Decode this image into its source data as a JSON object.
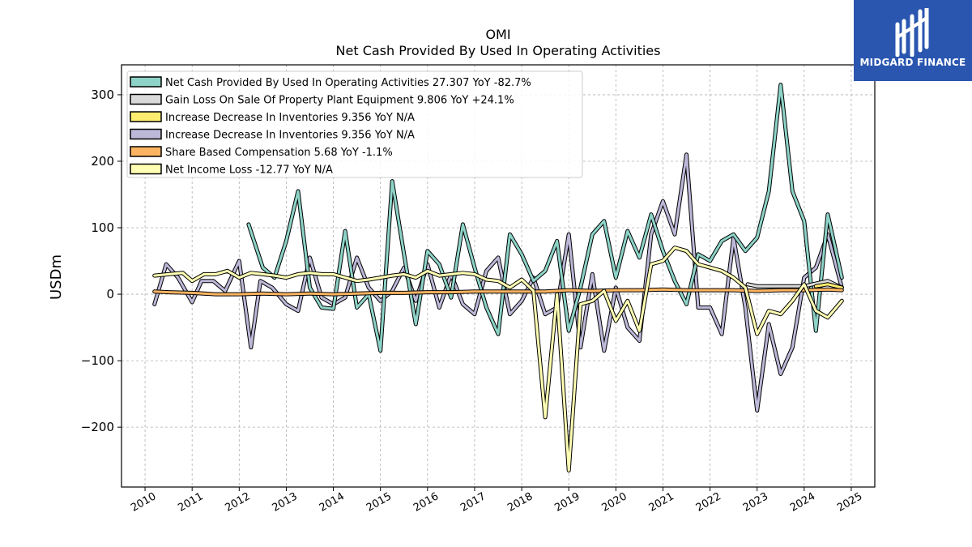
{
  "brand": {
    "name": "MIDGARD FINANCE",
    "bg_color": "#2a56b0"
  },
  "chart_data": {
    "type": "line",
    "title": "OMI",
    "subtitle": "Net Cash Provided By Used In Operating Activities",
    "xlabel": "",
    "ylabel": "USDm",
    "xlim": [
      2009.5,
      2025.5
    ],
    "ylim": [
      -290,
      345
    ],
    "yticks": [
      300,
      200,
      100,
      0,
      -100,
      -200
    ],
    "ytick_labels": [
      "300",
      "200",
      "100",
      "0",
      "−100",
      "−200"
    ],
    "xticks": [
      2010,
      2011,
      2012,
      2013,
      2014,
      2015,
      2016,
      2017,
      2018,
      2019,
      2020,
      2021,
      2022,
      2023,
      2024,
      2025
    ],
    "xtick_labels": [
      "2010",
      "2011",
      "2012",
      "2013",
      "2014",
      "2015",
      "2016",
      "2017",
      "2018",
      "2019",
      "2020",
      "2021",
      "2022",
      "2023",
      "2024",
      "2025"
    ],
    "grid": true,
    "legend_position": "top-left",
    "series": [
      {
        "name": "Increase Decrease In Inventories",
        "label": "Increase Decrease In Inventories  9.356 YoY N/A",
        "color": "#bcb8d8",
        "x": [
          2010.2,
          2010.45,
          2010.7,
          2011.0,
          2011.2,
          2011.45,
          2011.7,
          2012.0,
          2012.25,
          2012.45,
          2012.7,
          2013.0,
          2013.25,
          2013.5,
          2013.75,
          2014.0,
          2014.25,
          2014.5,
          2014.75,
          2015.0,
          2015.25,
          2015.5,
          2015.75,
          2016.0,
          2016.25,
          2016.5,
          2016.75,
          2017.0,
          2017.25,
          2017.5,
          2017.75,
          2018.0,
          2018.25,
          2018.5,
          2018.75,
          2019.0,
          2019.25,
          2019.5,
          2019.75,
          2020.0,
          2020.25,
          2020.5,
          2020.75,
          2021.0,
          2021.25,
          2021.5,
          2021.75,
          2022.0,
          2022.25,
          2022.5,
          2022.75,
          2023.0,
          2023.25,
          2023.5,
          2023.75,
          2024.0,
          2024.25,
          2024.5,
          2024.8
        ],
        "values": [
          -15,
          45,
          25,
          -12,
          20,
          20,
          5,
          50,
          -80,
          20,
          10,
          -15,
          -25,
          55,
          -5,
          -15,
          -5,
          55,
          10,
          -10,
          5,
          40,
          -10,
          45,
          -20,
          30,
          -15,
          -30,
          35,
          55,
          -30,
          -10,
          25,
          -30,
          -20,
          90,
          -80,
          30,
          -85,
          10,
          -50,
          -70,
          90,
          140,
          90,
          210,
          -20,
          -20,
          -60,
          85,
          -20,
          -175,
          -45,
          -120,
          -80,
          25,
          40,
          90,
          10
        ]
      },
      {
        "name": "Net Cash Provided By Used In Operating Activities",
        "label": "Net Cash Provided By Used In Operating Activities  27.307 YoY -82.7%",
        "color": "#8dd3c7",
        "x": [
          2012.2,
          2012.5,
          2012.75,
          2013.0,
          2013.25,
          2013.5,
          2013.75,
          2014.0,
          2014.25,
          2014.5,
          2014.75,
          2015.0,
          2015.25,
          2015.5,
          2015.75,
          2016.0,
          2016.25,
          2016.5,
          2016.75,
          2017.0,
          2017.25,
          2017.5,
          2017.75,
          2018.0,
          2018.25,
          2018.5,
          2018.75,
          2019.0,
          2019.25,
          2019.5,
          2019.75,
          2020.0,
          2020.25,
          2020.5,
          2020.75,
          2021.0,
          2021.25,
          2021.5,
          2021.75,
          2022.0,
          2022.25,
          2022.5,
          2022.75,
          2023.0,
          2023.25,
          2023.5,
          2023.75,
          2024.0,
          2024.25,
          2024.5,
          2024.8
        ],
        "values": [
          105,
          40,
          25,
          80,
          155,
          10,
          -20,
          -22,
          95,
          -20,
          0,
          -85,
          170,
          60,
          -45,
          65,
          45,
          -5,
          105,
          40,
          -20,
          -60,
          90,
          60,
          20,
          35,
          80,
          -55,
          10,
          90,
          110,
          25,
          95,
          55,
          120,
          65,
          20,
          -15,
          60,
          50,
          80,
          90,
          65,
          85,
          155,
          315,
          155,
          110,
          -55,
          120,
          25
        ]
      },
      {
        "name": "Gain Loss On Sale Of Property Plant Equipment",
        "label": "Gain Loss On Sale Of Property Plant Equipment  9.806 YoY +24.1%",
        "color": "#d9d9d9",
        "x": [
          2022.8,
          2023.0,
          2023.5,
          2024.0,
          2024.5,
          2024.8
        ],
        "values": [
          15,
          12,
          12,
          12,
          20,
          10
        ]
      },
      {
        "name": "Increase Decrease In Inventories",
        "label": "Increase Decrease In Inventories  9.356 YoY N/A",
        "color": "#ffed6f",
        "x": [
          2024.25,
          2024.5,
          2024.8
        ],
        "values": [
          12,
          15,
          10
        ]
      },
      {
        "name": "Share Based Compensation",
        "label": "Share Based Compensation  5.68 YoY -1.1%",
        "color": "#fdb462",
        "x": [
          2010.2,
          2010.5,
          2011.0,
          2011.5,
          2012.0,
          2012.5,
          2013.0,
          2013.5,
          2014.0,
          2014.5,
          2015.0,
          2015.5,
          2016.0,
          2016.5,
          2017.0,
          2017.5,
          2018.0,
          2018.5,
          2019.0,
          2019.5,
          2020.0,
          2020.5,
          2021.0,
          2021.5,
          2022.0,
          2022.5,
          2023.0,
          2023.5,
          2024.0,
          2024.5,
          2024.8
        ],
        "values": [
          4,
          3,
          2,
          0,
          0,
          1,
          0,
          1,
          0,
          1,
          2,
          2,
          3,
          3,
          4,
          4,
          4,
          4,
          6,
          5,
          6,
          6,
          7,
          6,
          6,
          6,
          5,
          6,
          6,
          7,
          6
        ]
      },
      {
        "name": "Net Income Loss",
        "label": "Net Income Loss  -12.77 YoY N/A",
        "color": "#ffffb3",
        "x": [
          2010.2,
          2010.5,
          2010.8,
          2011.0,
          2011.25,
          2011.5,
          2011.75,
          2012.0,
          2012.25,
          2012.5,
          2012.75,
          2013.0,
          2013.25,
          2013.5,
          2013.75,
          2014.0,
          2014.25,
          2014.5,
          2014.75,
          2015.0,
          2015.25,
          2015.5,
          2015.75,
          2016.0,
          2016.25,
          2016.5,
          2016.75,
          2017.0,
          2017.25,
          2017.5,
          2017.75,
          2018.0,
          2018.25,
          2018.5,
          2018.75,
          2019.0,
          2019.25,
          2019.5,
          2019.75,
          2020.0,
          2020.25,
          2020.5,
          2020.75,
          2021.0,
          2021.25,
          2021.5,
          2021.75,
          2022.0,
          2022.25,
          2022.5,
          2022.75,
          2023.0,
          2023.25,
          2023.5,
          2023.75,
          2024.0,
          2024.25,
          2024.5,
          2024.8
        ],
        "values": [
          28,
          30,
          32,
          20,
          30,
          30,
          35,
          25,
          32,
          30,
          28,
          25,
          30,
          32,
          30,
          30,
          25,
          20,
          22,
          25,
          28,
          30,
          25,
          35,
          28,
          30,
          32,
          30,
          22,
          20,
          10,
          22,
          5,
          -185,
          0,
          -265,
          -15,
          -10,
          5,
          -40,
          -10,
          -55,
          45,
          50,
          70,
          65,
          45,
          40,
          35,
          25,
          10,
          -60,
          -25,
          -30,
          -10,
          15,
          -25,
          -35,
          -10
        ]
      }
    ],
    "legend_order": [
      1,
      2,
      3,
      0,
      4,
      5
    ]
  }
}
